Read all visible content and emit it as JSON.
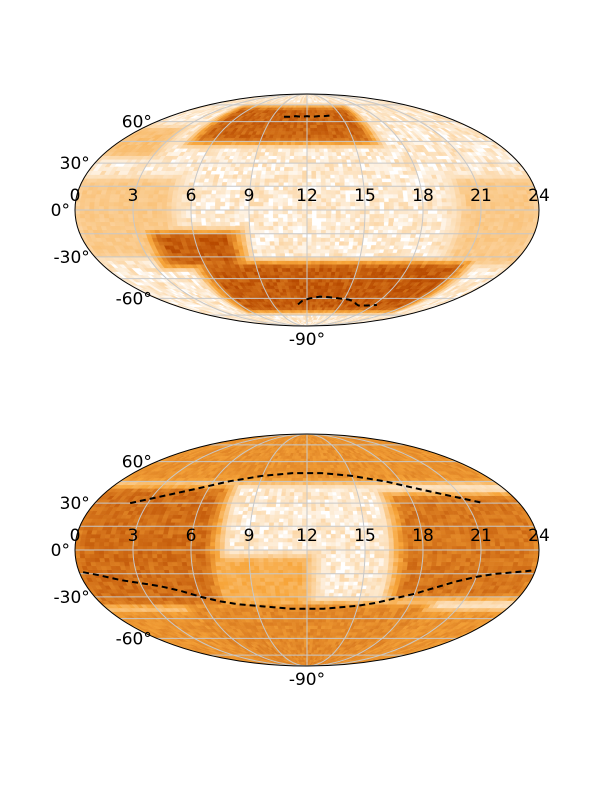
{
  "chart_data": [
    {
      "type": "heatmap",
      "projection": "mollweide",
      "grid": true,
      "x_ticks": [
        "0",
        "3",
        "6",
        "9",
        "12",
        "15",
        "18",
        "21",
        "24"
      ],
      "y_ticks": [
        "60°",
        "30°",
        "0°",
        "-30°",
        "-60°",
        "-90°"
      ],
      "x_range_hours": [
        0,
        24
      ],
      "y_range_deg": [
        -90,
        90
      ],
      "colormap": "white-to-dark-orange",
      "colors": {
        "low": "#ffffff",
        "mid": "#f7a53a",
        "high": "#b84a00"
      },
      "regions": [
        {
          "ra": [
            5,
            16
          ],
          "dec": [
            45,
            72
          ],
          "level": 0.85
        },
        {
          "ra": [
            0,
            3
          ],
          "dec": [
            35,
            55
          ],
          "level": 0.35
        },
        {
          "ra": [
            4,
            8
          ],
          "dec": [
            -35,
            -15
          ],
          "level": 0.9
        },
        {
          "ra": [
            6,
            21
          ],
          "dec": [
            -70,
            -35
          ],
          "level": 0.9
        },
        {
          "ra": [
            20,
            24
          ],
          "dec": [
            -35,
            20
          ],
          "level": 0.3
        },
        {
          "ra": [
            0,
            5
          ],
          "dec": [
            -30,
            20
          ],
          "level": 0.3
        }
      ],
      "boundary": [
        {
          "ra": 10,
          "dec": 64
        },
        {
          "ra": 10.5,
          "dec": 64
        },
        {
          "ra": 11,
          "dec": 64.5
        },
        {
          "ra": 11.5,
          "dec": 64
        },
        {
          "ra": 12,
          "dec": 64.5
        },
        {
          "ra": 12.5,
          "dec": 64
        },
        {
          "ra": 13,
          "dec": 64.5
        },
        {
          "ra": 13.5,
          "dec": 64.5
        },
        {
          "ra": 14,
          "dec": 65
        },
        null,
        {
          "ra": 11.2,
          "dec": -65
        },
        {
          "ra": 11.6,
          "dec": -62
        },
        {
          "ra": 12.2,
          "dec": -60
        },
        {
          "ra": 13,
          "dec": -58.5
        },
        {
          "ra": 13.8,
          "dec": -59
        },
        {
          "ra": 14.6,
          "dec": -60
        },
        {
          "ra": 15.4,
          "dec": -61
        },
        {
          "ra": 16,
          "dec": -62.5
        },
        {
          "ra": 16.3,
          "dec": -64.5
        },
        {
          "ra": 16.7,
          "dec": -66
        },
        {
          "ra": 17.5,
          "dec": -66
        },
        {
          "ra": 18.3,
          "dec": -65.5
        }
      ]
    },
    {
      "type": "heatmap",
      "projection": "mollweide",
      "grid": true,
      "x_ticks": [
        "0",
        "3",
        "6",
        "9",
        "12",
        "15",
        "18",
        "21",
        "24"
      ],
      "y_ticks": [
        "60°",
        "30°",
        "0°",
        "-30°",
        "-60°",
        "-90°"
      ],
      "x_range_hours": [
        0,
        24
      ],
      "y_range_deg": [
        -90,
        90
      ],
      "colormap": "white-to-dark-orange",
      "colors": {
        "low": "#ffffff",
        "mid": "#f7a53a",
        "high": "#b84a00"
      },
      "regions": [
        {
          "ra": [
            0,
            7
          ],
          "dec": [
            -35,
            40
          ],
          "level": 0.8
        },
        {
          "ra": [
            17,
            24
          ],
          "dec": [
            -30,
            35
          ],
          "level": 0.75
        },
        {
          "ra": [
            5,
            19
          ],
          "dec": [
            -90,
            -35
          ],
          "level": 0.65
        },
        {
          "ra": [
            5,
            19
          ],
          "dec": [
            45,
            90
          ],
          "level": 0.55
        },
        {
          "ra": [
            7,
            12
          ],
          "dec": [
            -38,
            -5
          ],
          "level": 0.45
        },
        {
          "ra": [
            0,
            24
          ],
          "dec": [
            45,
            90
          ],
          "level": 0.6
        },
        {
          "ra": [
            0,
            24
          ],
          "dec": [
            -90,
            -40
          ],
          "level": 0.6
        }
      ],
      "boundary": [
        {
          "ra": 2,
          "dec": 30
        },
        {
          "ra": 3,
          "dec": 33
        },
        {
          "ra": 4,
          "dec": 36
        },
        {
          "ra": 5,
          "dec": 39
        },
        {
          "ra": 6,
          "dec": 42
        },
        {
          "ra": 7,
          "dec": 45
        },
        {
          "ra": 8,
          "dec": 47
        },
        {
          "ra": 9,
          "dec": 49
        },
        {
          "ra": 10,
          "dec": 50
        },
        {
          "ra": 11,
          "dec": 51
        },
        {
          "ra": 12,
          "dec": 51
        },
        {
          "ra": 13,
          "dec": 51
        },
        {
          "ra": 14,
          "dec": 50
        },
        {
          "ra": 15,
          "dec": 49
        },
        {
          "ra": 16,
          "dec": 47
        },
        {
          "ra": 17,
          "dec": 45
        },
        {
          "ra": 18,
          "dec": 42
        },
        {
          "ra": 19,
          "dec": 39
        },
        {
          "ra": 20,
          "dec": 36
        },
        {
          "ra": 21,
          "dec": 33
        },
        {
          "ra": 22,
          "dec": 30
        },
        null,
        {
          "ra": 0.2,
          "dec": -14
        },
        {
          "ra": 1,
          "dec": -16
        },
        {
          "ra": 2,
          "dec": -19
        },
        {
          "ra": 3,
          "dec": -21
        },
        {
          "ra": 4,
          "dec": -23
        },
        {
          "ra": 5,
          "dec": -26
        },
        {
          "ra": 6,
          "dec": -30
        },
        {
          "ra": 7,
          "dec": -33
        },
        {
          "ra": 8,
          "dec": -35
        },
        {
          "ra": 9,
          "dec": -36
        },
        {
          "ra": 10,
          "dec": -37
        },
        {
          "ra": 11,
          "dec": -38
        },
        {
          "ra": 12,
          "dec": -38
        },
        {
          "ra": 13,
          "dec": -38
        },
        {
          "ra": 14,
          "dec": -37
        },
        {
          "ra": 15,
          "dec": -36
        },
        {
          "ra": 16,
          "dec": -34
        },
        {
          "ra": 17,
          "dec": -31
        },
        {
          "ra": 18,
          "dec": -28
        },
        {
          "ra": 19,
          "dec": -24
        },
        {
          "ra": 20,
          "dec": -20
        },
        {
          "ra": 21,
          "dec": -17
        },
        {
          "ra": 22,
          "dec": -15
        },
        {
          "ra": 23,
          "dec": -14
        },
        {
          "ra": 23.8,
          "dec": -13
        }
      ]
    }
  ]
}
